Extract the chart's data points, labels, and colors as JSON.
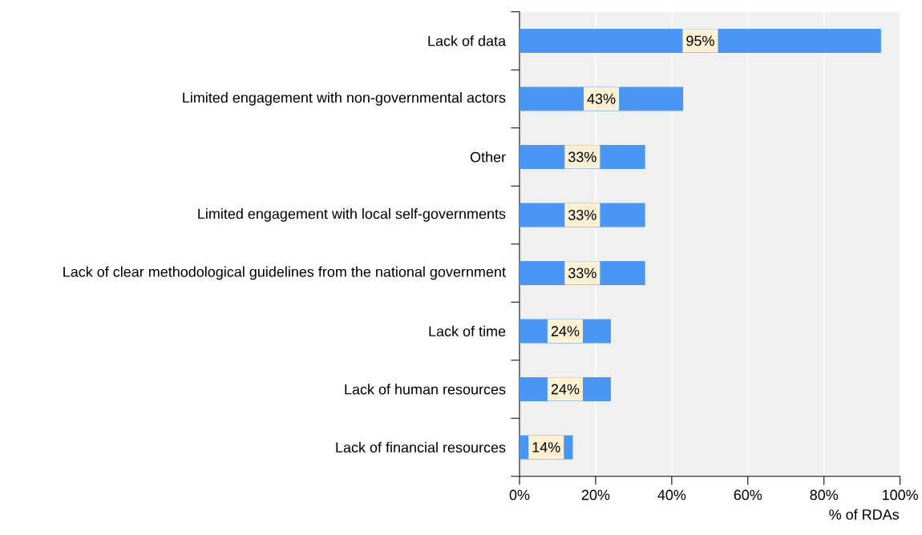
{
  "chart_data": {
    "type": "bar",
    "orientation": "horizontal",
    "xlabel": "% of RDAs",
    "categories": [
      "Lack of data",
      "Limited engagement with non-governmental actors",
      "Other",
      "Limited engagement with local self-governments",
      "Lack of clear methodological guidelines from the national government",
      "Lack of time",
      "Lack of human resources",
      "Lack of financial resources"
    ],
    "values": [
      95,
      43,
      33,
      33,
      33,
      24,
      24,
      14
    ],
    "value_labels": [
      "95%",
      "43%",
      "33%",
      "33%",
      "33%",
      "24%",
      "24%",
      "14%"
    ],
    "color": "#4a96f5",
    "xlim": [
      0,
      100
    ],
    "xticks": [
      {
        "value": 0,
        "label": "0%"
      },
      {
        "value": 20,
        "label": "20%"
      },
      {
        "value": 40,
        "label": "40%"
      },
      {
        "value": 60,
        "label": "60%"
      },
      {
        "value": 80,
        "label": "80%"
      },
      {
        "value": 100,
        "label": "100%"
      }
    ],
    "grid": "x"
  }
}
